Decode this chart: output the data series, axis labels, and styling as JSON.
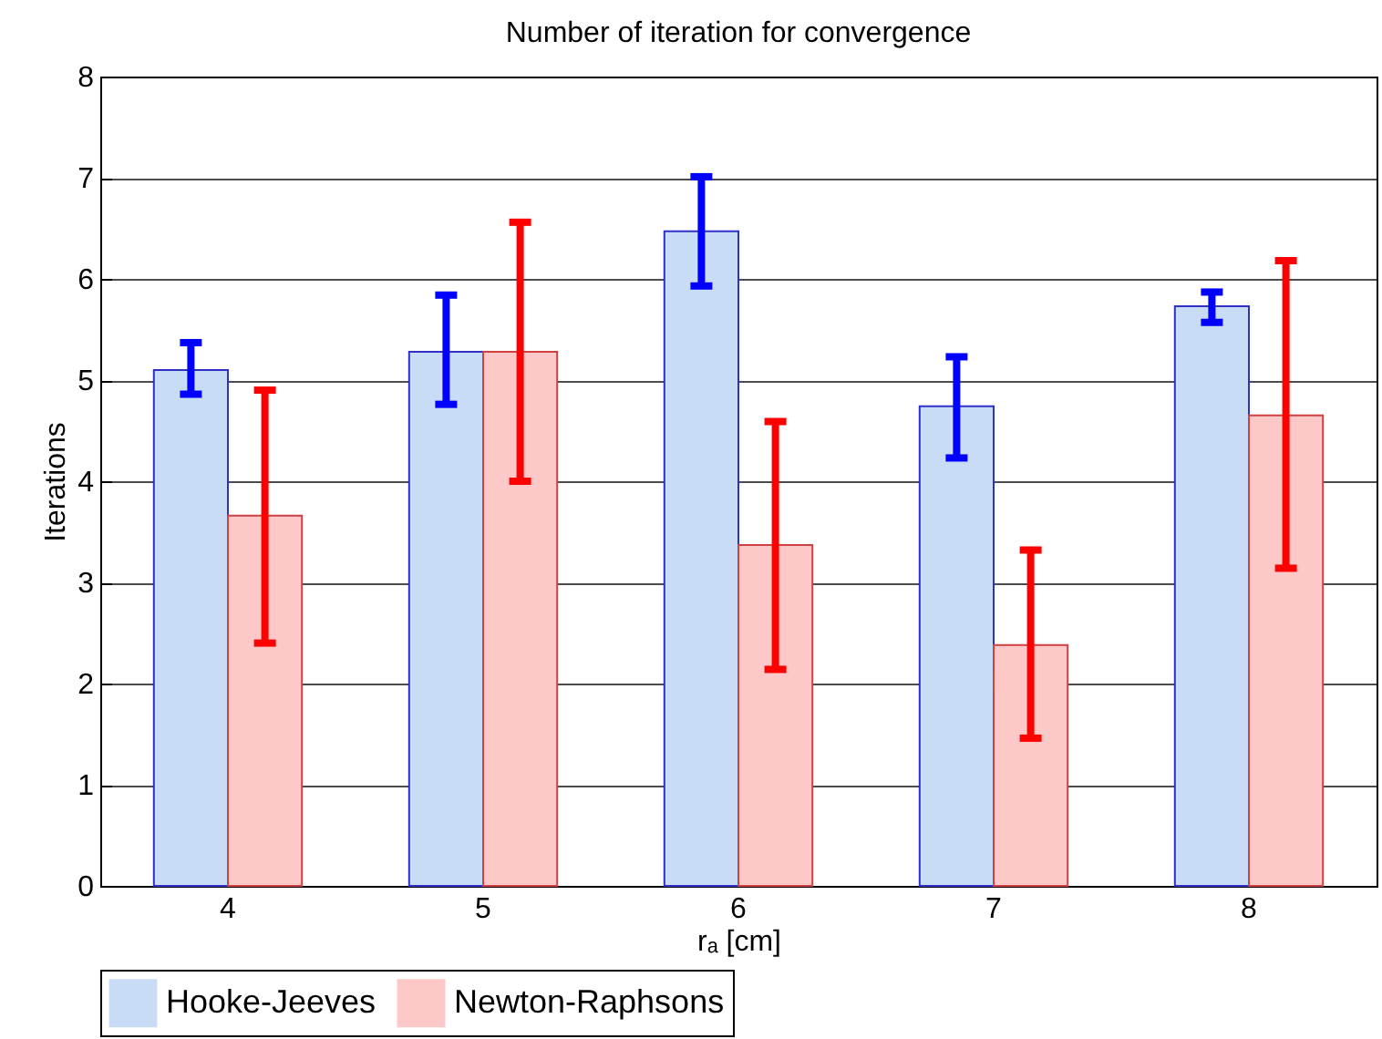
{
  "chart_data": {
    "type": "bar",
    "title": "Number of iteration for convergence",
    "xlabel": "rₐ [cm]",
    "ylabel": "Iterations",
    "categories": [
      "4",
      "5",
      "6",
      "7",
      "8"
    ],
    "series": [
      {
        "name": "Hooke-Jeeves",
        "color": "#c9dcf5",
        "values": [
          5.1,
          5.28,
          6.47,
          4.74,
          5.73
        ],
        "errors": [
          [
            4.86,
            5.37
          ],
          [
            4.76,
            5.84
          ],
          [
            5.93,
            7.01
          ],
          [
            4.23,
            5.23
          ],
          [
            5.57,
            5.87
          ]
        ]
      },
      {
        "name": "Newton-Raphsons",
        "color": "#fcc8c8",
        "values": [
          3.66,
          5.28,
          3.37,
          2.38,
          4.65
        ],
        "errors": [
          [
            2.4,
            4.9
          ],
          [
            4.0,
            6.56
          ],
          [
            2.14,
            4.59
          ],
          [
            1.46,
            3.32
          ],
          [
            3.14,
            6.18
          ]
        ]
      }
    ],
    "ylim": [
      0,
      8
    ],
    "yticks": [
      0,
      1,
      2,
      3,
      4,
      5,
      6,
      7,
      8
    ],
    "grid": "y",
    "legend": "bottom"
  }
}
